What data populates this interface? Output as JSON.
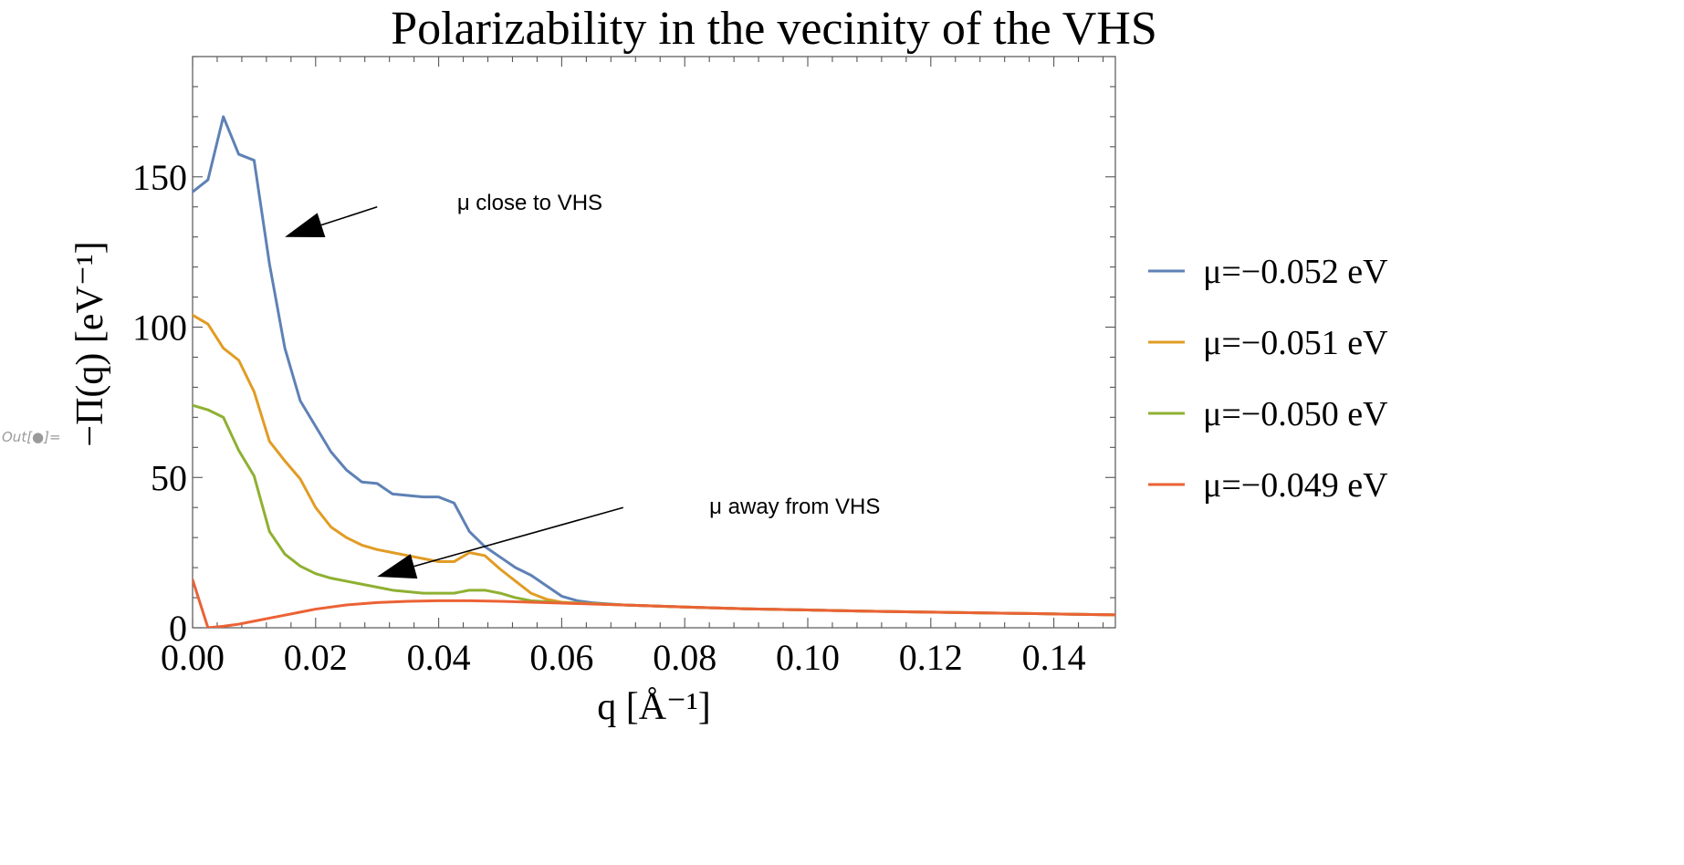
{
  "out_label": "Out[●]=",
  "chart_data": {
    "type": "line",
    "title": "Polarizability in the vecinity of the VHS",
    "xlabel": "q [Å⁻¹]",
    "ylabel": "−Π(q) [eV⁻¹]",
    "xlim": [
      0,
      0.15
    ],
    "ylim": [
      0,
      190
    ],
    "xticks": [
      0.0,
      0.02,
      0.04,
      0.06,
      0.08,
      0.1,
      0.12,
      0.14
    ],
    "xtick_labels": [
      "0.00",
      "0.02",
      "0.04",
      "0.06",
      "0.08",
      "0.10",
      "0.12",
      "0.14"
    ],
    "yticks": [
      0,
      50,
      100,
      150
    ],
    "ytick_labels": [
      "0",
      "50",
      "100",
      "150"
    ],
    "grid": false,
    "legend_position": "right",
    "series": [
      {
        "name": "μ=−0.052 eV",
        "color": "#5E81B5",
        "points": [
          [
            0,
            145
          ],
          [
            0.0025,
            149
          ],
          [
            0.005,
            170
          ],
          [
            0.0075,
            157.5
          ],
          [
            0.01,
            155.5
          ],
          [
            0.0125,
            121
          ],
          [
            0.015,
            93
          ],
          [
            0.0175,
            75.5
          ],
          [
            0.02,
            67
          ],
          [
            0.0225,
            58.5
          ],
          [
            0.025,
            52.5
          ],
          [
            0.0275,
            48.5
          ],
          [
            0.03,
            48
          ],
          [
            0.0325,
            44.5
          ],
          [
            0.035,
            44
          ],
          [
            0.0375,
            43.5
          ],
          [
            0.04,
            43.5
          ],
          [
            0.0425,
            41.5
          ],
          [
            0.045,
            32
          ],
          [
            0.0475,
            27
          ],
          [
            0.05,
            23.5
          ],
          [
            0.0525,
            20
          ],
          [
            0.055,
            17.5
          ],
          [
            0.0575,
            14
          ],
          [
            0.06,
            10.5
          ],
          [
            0.0625,
            9
          ],
          [
            0.065,
            8.3
          ],
          [
            0.07,
            7.6
          ],
          [
            0.08,
            6.9
          ],
          [
            0.09,
            6.3
          ],
          [
            0.1,
            5.9
          ],
          [
            0.11,
            5.5
          ],
          [
            0.12,
            5.2
          ],
          [
            0.13,
            4.9
          ],
          [
            0.14,
            4.6
          ],
          [
            0.15,
            4.3
          ]
        ]
      },
      {
        "name": "μ=−0.051 eV",
        "color": "#E19C24",
        "points": [
          [
            0,
            104
          ],
          [
            0.0025,
            101
          ],
          [
            0.005,
            93
          ],
          [
            0.0075,
            89
          ],
          [
            0.01,
            78.5
          ],
          [
            0.0125,
            62
          ],
          [
            0.015,
            55.5
          ],
          [
            0.0175,
            49.5
          ],
          [
            0.02,
            40
          ],
          [
            0.0225,
            33.5
          ],
          [
            0.025,
            30
          ],
          [
            0.0275,
            27.5
          ],
          [
            0.03,
            26
          ],
          [
            0.0325,
            25
          ],
          [
            0.035,
            24
          ],
          [
            0.0375,
            23
          ],
          [
            0.04,
            22
          ],
          [
            0.0425,
            22
          ],
          [
            0.045,
            25
          ],
          [
            0.0475,
            24
          ],
          [
            0.05,
            19.5
          ],
          [
            0.0525,
            15.5
          ],
          [
            0.055,
            11.5
          ],
          [
            0.0575,
            9.5
          ],
          [
            0.06,
            8.5
          ],
          [
            0.065,
            8
          ],
          [
            0.07,
            7.6
          ],
          [
            0.08,
            6.9
          ],
          [
            0.09,
            6.3
          ],
          [
            0.1,
            5.9
          ],
          [
            0.11,
            5.5
          ],
          [
            0.12,
            5.2
          ],
          [
            0.13,
            4.9
          ],
          [
            0.14,
            4.6
          ],
          [
            0.15,
            4.3
          ]
        ]
      },
      {
        "name": "μ=−0.050 eV",
        "color": "#8FB032",
        "points": [
          [
            0,
            74
          ],
          [
            0.0025,
            72.5
          ],
          [
            0.005,
            70
          ],
          [
            0.0075,
            59
          ],
          [
            0.01,
            50.5
          ],
          [
            0.0125,
            32
          ],
          [
            0.015,
            24.5
          ],
          [
            0.0175,
            20.5
          ],
          [
            0.02,
            18
          ],
          [
            0.0225,
            16.5
          ],
          [
            0.025,
            15.5
          ],
          [
            0.0275,
            14.5
          ],
          [
            0.03,
            13.5
          ],
          [
            0.0325,
            12.5
          ],
          [
            0.035,
            12
          ],
          [
            0.0375,
            11.5
          ],
          [
            0.04,
            11.5
          ],
          [
            0.0425,
            11.5
          ],
          [
            0.045,
            12.5
          ],
          [
            0.0475,
            12.5
          ],
          [
            0.05,
            11.5
          ],
          [
            0.0525,
            10
          ],
          [
            0.055,
            9
          ],
          [
            0.06,
            8.3
          ],
          [
            0.065,
            8
          ],
          [
            0.07,
            7.6
          ],
          [
            0.08,
            6.9
          ],
          [
            0.09,
            6.3
          ],
          [
            0.1,
            5.9
          ],
          [
            0.11,
            5.5
          ],
          [
            0.12,
            5.2
          ],
          [
            0.13,
            4.9
          ],
          [
            0.14,
            4.6
          ],
          [
            0.15,
            4.3
          ]
        ]
      },
      {
        "name": "μ=−0.049 eV",
        "color": "#EB6235",
        "points": [
          [
            0,
            16
          ],
          [
            0.0025,
            0
          ],
          [
            0.005,
            0.5
          ],
          [
            0.0075,
            1.2
          ],
          [
            0.01,
            2.2
          ],
          [
            0.0125,
            3.2
          ],
          [
            0.015,
            4.2
          ],
          [
            0.0175,
            5.2
          ],
          [
            0.02,
            6.2
          ],
          [
            0.025,
            7.6
          ],
          [
            0.03,
            8.4
          ],
          [
            0.035,
            8.8
          ],
          [
            0.04,
            9
          ],
          [
            0.045,
            9
          ],
          [
            0.05,
            8.8
          ],
          [
            0.055,
            8.5
          ],
          [
            0.06,
            8.2
          ],
          [
            0.065,
            7.9
          ],
          [
            0.07,
            7.6
          ],
          [
            0.08,
            6.9
          ],
          [
            0.09,
            6.3
          ],
          [
            0.1,
            5.9
          ],
          [
            0.11,
            5.5
          ],
          [
            0.12,
            5.2
          ],
          [
            0.13,
            4.9
          ],
          [
            0.14,
            4.6
          ],
          [
            0.15,
            4.3
          ]
        ]
      }
    ],
    "annotations": [
      {
        "text": "μ close to VHS",
        "text_at": [
          0.043,
          139
        ],
        "arrow_from": [
          0.03,
          140
        ],
        "arrow_to": [
          0.015,
          130
        ]
      },
      {
        "text": "μ away from VHS",
        "text_at": [
          0.084,
          38
        ],
        "arrow_from": [
          0.07,
          40
        ],
        "arrow_to": [
          0.03,
          17
        ]
      }
    ]
  }
}
